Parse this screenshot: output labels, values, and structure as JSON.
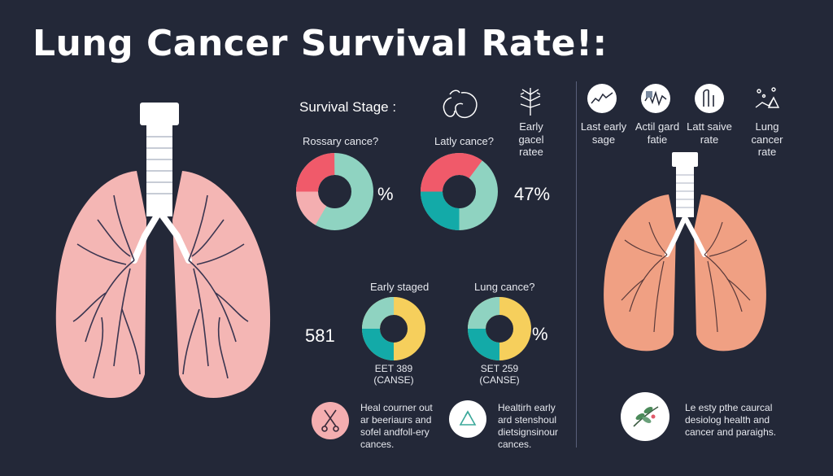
{
  "title": "Lung Cancer Survival Rate!:",
  "section_heading": "Survival Stage :",
  "top_icon_labels": [
    {
      "line1": "Early gacel",
      "line2": "ratee"
    }
  ],
  "right_icon_labels": [
    {
      "line1": "Last early",
      "line2": "sage"
    },
    {
      "line1": "Actil gard",
      "line2": "fatie"
    },
    {
      "line1": "Latt saive",
      "line2": "rate"
    },
    {
      "line1": "Lung cancer",
      "line2": "rate"
    }
  ],
  "donuts": [
    {
      "label": "Rossary cance?",
      "value_text": "%"
    },
    {
      "label": "Latly cance?",
      "value_text": "47%"
    },
    {
      "label": "Early staged",
      "caption1": "EET 389",
      "caption2": "(CANSE)"
    },
    {
      "label": "Lung cance?",
      "value_text": "%",
      "caption1": "SET 259",
      "caption2": "(CANSE)"
    }
  ],
  "side_number": "581",
  "footer": [
    {
      "lines": [
        "Heal courner out",
        "ar beeriaurs and",
        "sofel andfoll-ery",
        "cances."
      ]
    },
    {
      "lines": [
        "Healtirh early",
        "ard stenshoul",
        "dietsignsinour",
        "cances."
      ]
    },
    {
      "lines": [
        "Le esty pthe caurcal",
        "desiolog health and",
        "cancer and paraighs."
      ]
    }
  ],
  "colors": {
    "background": "#232838",
    "red": "#f05a6a",
    "mint": "#8fd3c1",
    "pink": "#f4aeb0",
    "teal": "#13aaa8",
    "yellow": "#f6cf5c",
    "lung_left": "#f4b6b4",
    "lung_right": "#f0a083"
  }
}
